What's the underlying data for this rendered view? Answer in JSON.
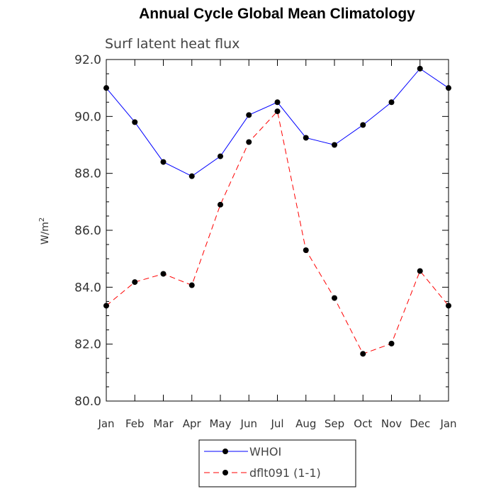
{
  "chart_data": {
    "type": "line",
    "title": "Annual Cycle Global Mean Climatology",
    "subtitle": "Surf latent heat flux",
    "ylabel": "W/m",
    "ylabel_superscript": "2",
    "ylim": [
      80.0,
      92.0
    ],
    "yticks": [
      "80.0",
      "82.0",
      "84.0",
      "86.0",
      "88.0",
      "90.0",
      "92.0"
    ],
    "categories": [
      "Jan",
      "Feb",
      "Mar",
      "Apr",
      "May",
      "Jun",
      "Jul",
      "Aug",
      "Sep",
      "Oct",
      "Nov",
      "Dec",
      "Jan"
    ],
    "series": [
      {
        "name": "WHOI",
        "color": "#0000ff",
        "style": "solid",
        "values": [
          91.0,
          89.8,
          88.4,
          87.9,
          88.6,
          90.05,
          90.5,
          89.25,
          89.0,
          89.7,
          90.5,
          91.68,
          91.0
        ]
      },
      {
        "name": "dflt091 (1-1)",
        "color": "#ff0000",
        "style": "dashed",
        "values": [
          83.35,
          84.18,
          84.47,
          84.07,
          86.9,
          89.1,
          90.18,
          85.3,
          83.62,
          81.66,
          82.02,
          84.57,
          83.35
        ]
      }
    ],
    "legend_position": "bottom-center"
  }
}
